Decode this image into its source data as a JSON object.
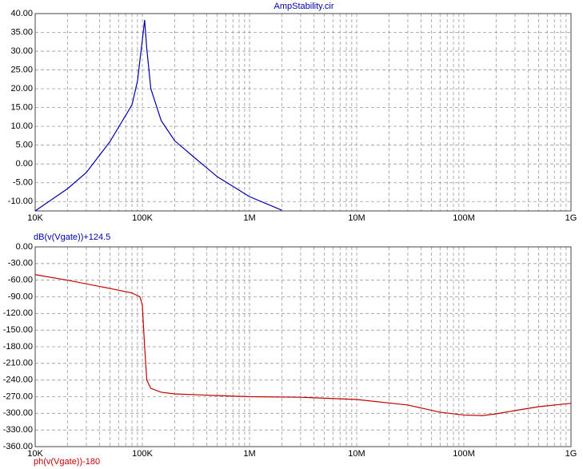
{
  "chart_data": [
    {
      "type": "line",
      "title": "AmpStability.cir",
      "xscale": "log",
      "grid": true,
      "minor_grid": true,
      "xlim": [
        10000,
        1000000000
      ],
      "xticks": [
        {
          "value": 10000,
          "label": "10K"
        },
        {
          "value": 100000,
          "label": "100K"
        },
        {
          "value": 1000000,
          "label": "1M"
        },
        {
          "value": 10000000,
          "label": "10M"
        },
        {
          "value": 100000000,
          "label": "100M"
        },
        {
          "value": 1000000000,
          "label": "1G"
        }
      ],
      "ylim": [
        -12.5,
        40
      ],
      "yticks": [
        {
          "value": 40,
          "label": "40.00"
        },
        {
          "value": 35,
          "label": "35.00"
        },
        {
          "value": 30,
          "label": "30.00"
        },
        {
          "value": 25,
          "label": "25.00"
        },
        {
          "value": 20,
          "label": "20.00"
        },
        {
          "value": 15,
          "label": "15.00"
        },
        {
          "value": 10,
          "label": "10.00"
        },
        {
          "value": 5,
          "label": "5.00"
        },
        {
          "value": 0,
          "label": "0.00"
        },
        {
          "value": -5,
          "label": "-5.00"
        },
        {
          "value": -10,
          "label": "-10.00"
        }
      ],
      "x": [
        10000,
        20000,
        30000,
        50000,
        80000,
        90000,
        100000,
        105000,
        110000,
        120000,
        150000,
        200000,
        300000,
        500000,
        1000000,
        2000000
      ],
      "series": [
        {
          "name": "dB(v(Vgate))+124.5",
          "color": "#0000a8",
          "values": [
            -12.5,
            -6.6,
            -2.3,
            6,
            15.7,
            22,
            33,
            38.3,
            30.6,
            20,
            11.5,
            6.2,
            1.9,
            -3.4,
            -8.7,
            -12.3
          ]
        }
      ]
    },
    {
      "type": "line",
      "xscale": "log",
      "grid": true,
      "minor_grid": true,
      "xlim": [
        10000,
        1000000000
      ],
      "xticks": [
        {
          "value": 10000,
          "label": "10K"
        },
        {
          "value": 100000,
          "label": "100K"
        },
        {
          "value": 1000000,
          "label": "1M"
        },
        {
          "value": 10000000,
          "label": "10M"
        },
        {
          "value": 100000000,
          "label": "100M"
        },
        {
          "value": 1000000000,
          "label": "1G"
        }
      ],
      "ylim": [
        -360,
        0
      ],
      "yticks": [
        {
          "value": 0,
          "label": "0.00"
        },
        {
          "value": -30,
          "label": "-30.00"
        },
        {
          "value": -60,
          "label": "-60.00"
        },
        {
          "value": -90,
          "label": "-90.00"
        },
        {
          "value": -120,
          "label": "-120.00"
        },
        {
          "value": -150,
          "label": "-150.00"
        },
        {
          "value": -180,
          "label": "-180.00"
        },
        {
          "value": -210,
          "label": "-210.00"
        },
        {
          "value": -240,
          "label": "-240.00"
        },
        {
          "value": -270,
          "label": "-270.00"
        },
        {
          "value": -300,
          "label": "-300.00"
        },
        {
          "value": -330,
          "label": "-330.00"
        },
        {
          "value": -360,
          "label": "-360.00"
        }
      ],
      "x": [
        10000,
        20000,
        50000,
        80000,
        95000,
        100000,
        105000,
        110000,
        120000,
        150000,
        200000,
        500000,
        1000000,
        3000000,
        10000000,
        30000000,
        60000000,
        100000000,
        150000000,
        200000000,
        300000000,
        500000000,
        1000000000
      ],
      "series": [
        {
          "name": "ph(v(Vgate))-180",
          "color": "#c00000",
          "values": [
            -50,
            -60,
            -75,
            -83,
            -90,
            -105,
            -180,
            -240,
            -255,
            -262,
            -265,
            -268,
            -270,
            -271,
            -275,
            -285,
            -298,
            -303,
            -304,
            -301,
            -295,
            -288,
            -282
          ]
        }
      ]
    }
  ]
}
